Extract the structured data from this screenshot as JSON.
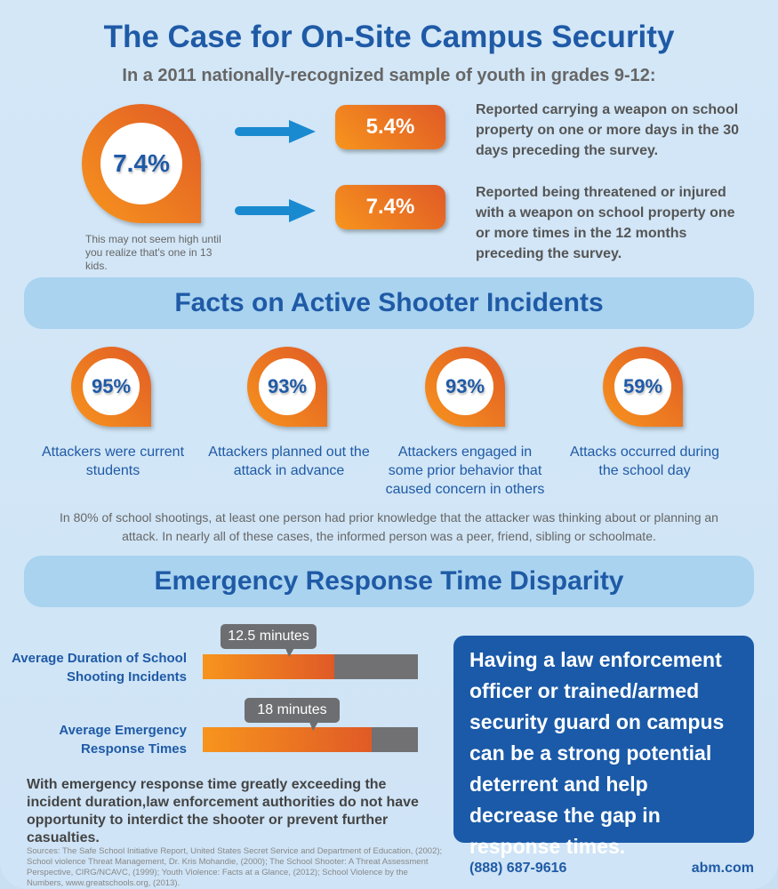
{
  "title": "The Case for On-Site Campus Security",
  "subtitle": "In a 2011 nationally-recognized sample of youth in grades 9-12:",
  "intro": {
    "main_stat": "7.4%",
    "main_caption": "This may not seem high until you realize that's one in 13 kids.",
    "items": [
      {
        "value": "5.4%",
        "text": "Reported carrying a weapon on school property on one or more days in the 30 days preceding the survey."
      },
      {
        "value": "7.4%",
        "text": "Reported being threatened or injured with a weapon on school property one or more times in the 12 months preceding the survey."
      }
    ]
  },
  "facts": {
    "heading": "Facts on Active Shooter Incidents",
    "items": [
      {
        "value": "95%",
        "text": "Attackers were current students"
      },
      {
        "value": "93%",
        "text": "Attackers planned out the attack in advance"
      },
      {
        "value": "93%",
        "text": "Attackers engaged in some prior behavior that caused concern in others"
      },
      {
        "value": "59%",
        "text": "Attacks occurred during the school day"
      }
    ],
    "note": "In 80% of school shootings, at least one person had prior knowledge that the attacker was thinking about or planning an attack. In nearly all of these cases, the informed person was a peer, friend, sibling or schoolmate."
  },
  "response": {
    "heading": "Emergency Response Time Disparity",
    "bars": [
      {
        "label": "Average Duration of School Shooting Incidents",
        "value": "12.5 minutes",
        "fill": 0.61
      },
      {
        "label": "Average Emergency Response Times",
        "value": "18 minutes",
        "fill": 0.785
      }
    ],
    "summary": "With emergency response time greatly exceeding the incident duration,law enforcement authorities do not have opportunity to interdict the shooter or prevent further casualties.",
    "callout": "Having a law enforcement officer or trained/armed security guard on campus can be a strong potential deterrent and help decrease the gap in response times."
  },
  "sources": "Sources: The Safe School Initiative Report, United States Secret Service and Department of Education, (2002); School violence Threat Management, Dr. Kris Mohandie, (2000); The School Shooter: A Threat Assessment Perspective, CIRG/NCAVC, (1999); Youth Violence: Facts at a Glance, (2012); School Violence by the Numbers, www.greatschools.org, (2013).",
  "phone": "(888) 687-9616",
  "website": "abm.com"
}
